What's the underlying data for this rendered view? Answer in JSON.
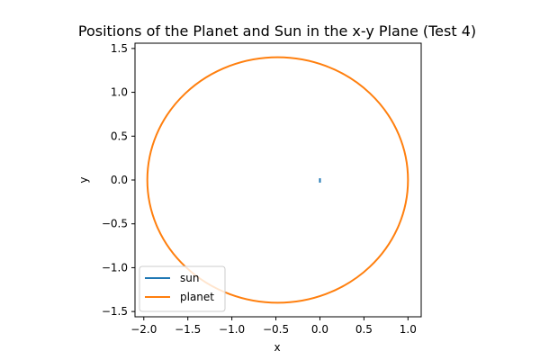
{
  "chart_data": {
    "type": "line",
    "title": "Positions of the Planet and Sun in the x-y Plane (Test 4)",
    "xlabel": "x",
    "ylabel": "y",
    "xlim": [
      -2.1,
      1.15
    ],
    "ylim": [
      -1.56,
      1.56
    ],
    "xticks": [
      -2.0,
      -1.5,
      -1.0,
      -0.5,
      0.0,
      0.5,
      1.0
    ],
    "xtick_labels": [
      "−2.0",
      "−1.5",
      "−1.0",
      "−0.5",
      "0.0",
      "0.5",
      "1.0"
    ],
    "yticks": [
      1.5,
      1.0,
      0.5,
      0.0,
      -0.5,
      -1.0,
      -1.5
    ],
    "ytick_labels": [
      "1.5",
      "1.0",
      "0.5",
      "0.0",
      "−0.5",
      "−1.0",
      "−1.5"
    ],
    "grid": false,
    "legend_position": "lower-left",
    "series": [
      {
        "name": "sun",
        "color": "#1f77b4",
        "x": [
          0.0,
          0.0
        ],
        "y": [
          0.02,
          -0.03
        ]
      },
      {
        "name": "planet",
        "color": "#ff7f0e",
        "shape": "ellipse",
        "center": [
          -0.48,
          0.0
        ],
        "semi_axes": [
          1.48,
          1.4
        ],
        "x": [
          1.0,
          0.96,
          0.79,
          0.53,
          0.22,
          -0.12,
          -0.48,
          -0.84,
          -1.18,
          -1.5,
          -1.77,
          -1.93,
          -1.96,
          -1.93,
          -1.77,
          -1.5,
          -1.18,
          -0.84,
          -0.48,
          -0.12,
          0.22,
          0.53,
          0.79,
          0.96,
          1.0
        ],
        "y": [
          0.0,
          0.36,
          0.7,
          0.99,
          1.21,
          1.35,
          1.4,
          1.35,
          1.21,
          0.99,
          0.7,
          0.36,
          0.0,
          -0.36,
          -0.7,
          -0.99,
          -1.21,
          -1.35,
          -1.4,
          -1.35,
          -1.21,
          -0.99,
          -0.7,
          -0.36,
          0.0
        ]
      }
    ]
  }
}
